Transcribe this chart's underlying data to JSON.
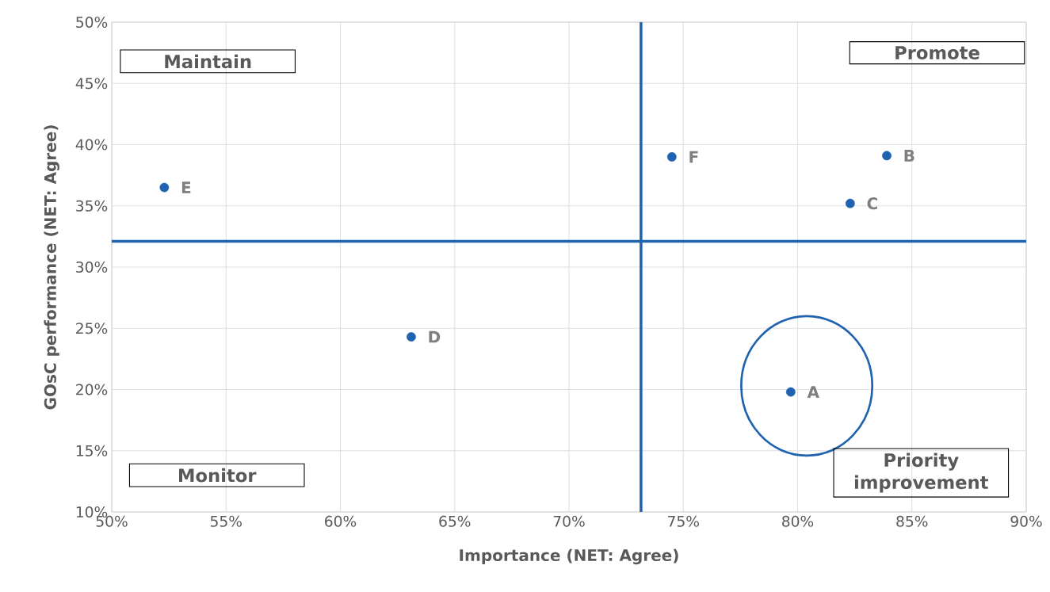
{
  "chart_data": {
    "type": "scatter",
    "xlabel": "Importance (NET: Agree)",
    "ylabel": "GOsC performance (NET: Agree)",
    "series": [
      {
        "color": "#1f63b0",
        "x": [
          79.7,
          83.9,
          82.3,
          63.1,
          52.3,
          74.5
        ],
        "values": [
          19.8,
          39.1,
          35.2,
          24.3,
          36.5,
          39.0
        ]
      }
    ],
    "marker": "circle",
    "xlim": [
      50,
      90
    ],
    "ylim": [
      10,
      50
    ],
    "xticks": [
      {
        "value": 50,
        "label": "50%"
      },
      {
        "value": 55,
        "label": "55%"
      },
      {
        "value": 60,
        "label": "60%"
      },
      {
        "value": 65,
        "label": "65%"
      },
      {
        "value": 70,
        "label": "70%"
      },
      {
        "value": 75,
        "label": "75%"
      },
      {
        "value": 80,
        "label": "80%"
      },
      {
        "value": 85,
        "label": "85%"
      },
      {
        "value": 90,
        "label": "90%"
      }
    ],
    "yticks": [
      {
        "value": 10,
        "label": "10%"
      },
      {
        "value": 15,
        "label": "15%"
      },
      {
        "value": 20,
        "label": "20%"
      },
      {
        "value": 25,
        "label": "25%"
      },
      {
        "value": 30,
        "label": "30%"
      },
      {
        "value": 35,
        "label": "35%"
      },
      {
        "value": 40,
        "label": "40%"
      },
      {
        "value": 45,
        "label": "45%"
      },
      {
        "value": 50,
        "label": "50%"
      }
    ],
    "grid": true,
    "ref_lines": [
      {
        "axis": "x",
        "value": 73.15,
        "color": "#1f63b0"
      },
      {
        "axis": "y",
        "value": 32.1,
        "color": "#1f63b0"
      }
    ],
    "annotations": [
      {
        "text": "A",
        "x": 79.7,
        "y": 19.8
      },
      {
        "text": "B",
        "x": 83.9,
        "y": 39.1
      },
      {
        "text": "C",
        "x": 82.3,
        "y": 35.2
      },
      {
        "text": "D",
        "x": 63.1,
        "y": 24.3
      },
      {
        "text": "E",
        "x": 52.3,
        "y": 36.5
      },
      {
        "text": "F",
        "x": 74.5,
        "y": 39.0
      },
      "Maintain",
      "Promote",
      "Monitor",
      "Priority improvement"
    ]
  }
}
